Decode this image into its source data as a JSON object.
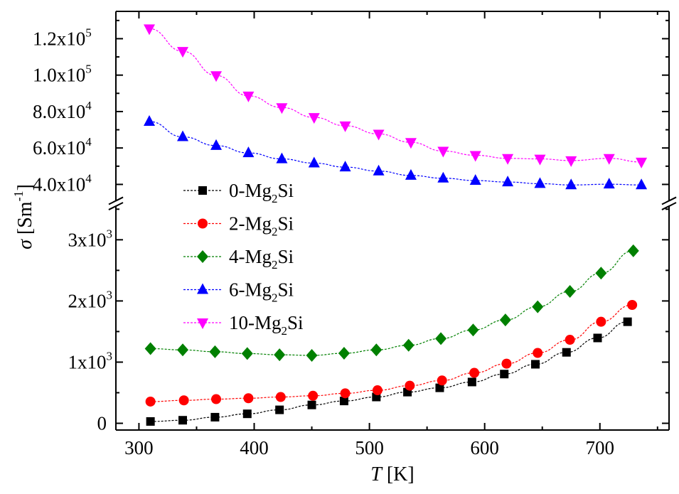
{
  "chart_data": {
    "type": "line",
    "xlabel": {
      "italic": "T",
      "rest": " [K]"
    },
    "ylabel": {
      "italic": "σ",
      "rest": " [Sm",
      "sup": "-1",
      "close": "]"
    },
    "xlim": [
      280,
      760
    ],
    "x_ticks": [
      "300",
      "400",
      "500",
      "600",
      "700"
    ],
    "broken_y_axis": true,
    "y_upper": {
      "ylim": [
        31000,
        135000
      ],
      "ticks": [
        40000,
        60000,
        80000,
        100000,
        120000
      ],
      "tick_labels": [
        "4.0x10^4",
        "6.0x10^4",
        "8.0x10^4",
        "1.0x10^5",
        "1.2x10^5"
      ]
    },
    "y_lower": {
      "ylim": [
        -110,
        3550
      ],
      "ticks": [
        0,
        1000,
        2000,
        3000
      ],
      "tick_labels": [
        "0",
        "1x10^3",
        "2x10^3",
        "3x10^3"
      ]
    },
    "legend_position": "center-left",
    "series": [
      {
        "name": "0-Mg2Si",
        "label_prefix": "0-Mg",
        "sub": "2",
        "label_suffix": "Si",
        "color": "#000000",
        "marker": "square",
        "segment": "lower",
        "x": [
          310,
          338,
          366,
          394,
          422,
          450,
          478,
          506,
          533,
          561,
          589,
          617,
          644,
          671,
          698,
          724
        ],
        "y": [
          30,
          50,
          100,
          155,
          220,
          300,
          365,
          430,
          510,
          580,
          675,
          805,
          965,
          1160,
          1395,
          1660
        ]
      },
      {
        "name": "2-Mg2Si",
        "label_prefix": "2-Mg",
        "sub": "2",
        "label_suffix": "Si",
        "color": "#ff0000",
        "marker": "circle",
        "segment": "lower",
        "x": [
          310,
          339,
          367,
          395,
          423,
          451,
          479,
          507,
          535,
          563,
          591,
          619,
          646,
          674,
          701,
          728
        ],
        "y": [
          355,
          375,
          395,
          410,
          430,
          450,
          490,
          540,
          615,
          700,
          825,
          975,
          1150,
          1365,
          1660,
          1935
        ]
      },
      {
        "name": "4-Mg2Si",
        "label_prefix": "4-Mg",
        "sub": "2",
        "label_suffix": "Si",
        "color": "#008000",
        "marker": "diamond",
        "segment": "lower",
        "x": [
          310,
          338,
          366,
          394,
          422,
          450,
          478,
          506,
          534,
          562,
          590,
          618,
          646,
          674,
          701,
          729
        ],
        "y": [
          1220,
          1200,
          1170,
          1140,
          1120,
          1110,
          1145,
          1200,
          1275,
          1385,
          1525,
          1690,
          1905,
          2155,
          2455,
          2820
        ]
      },
      {
        "name": "6-Mg2Si",
        "label_prefix": "6-Mg",
        "sub": "2",
        "label_suffix": "Si",
        "color": "#0000ff",
        "marker": "triangle-up",
        "segment": "upper",
        "x": [
          309,
          338,
          367,
          395,
          424,
          452,
          479,
          508,
          536,
          564,
          592,
          620,
          648,
          675,
          708,
          736
        ],
        "y": [
          74500,
          66100,
          61300,
          57300,
          54000,
          51700,
          49500,
          47300,
          44900,
          43400,
          42100,
          41300,
          40400,
          39700,
          40100,
          39700
        ]
      },
      {
        "name": "10-Mg2Si",
        "label_prefix": "10-Mg",
        "sub": "2",
        "label_suffix": "Si",
        "color": "#ff00ff",
        "marker": "triangle-down",
        "segment": "upper",
        "x": [
          309,
          338,
          367,
          395,
          424,
          452,
          479,
          508,
          536,
          564,
          592,
          620,
          648,
          675,
          708,
          736
        ],
        "y": [
          125500,
          113100,
          99800,
          88600,
          82200,
          76800,
          72200,
          67700,
          63100,
          58300,
          56000,
          54300,
          54000,
          53100,
          54300,
          52300
        ]
      }
    ]
  }
}
